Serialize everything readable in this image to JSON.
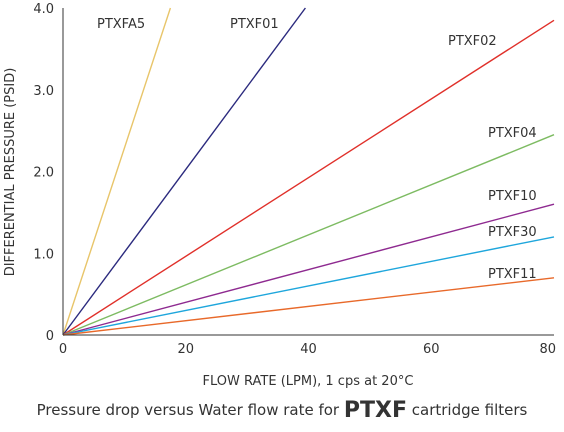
{
  "caption": {
    "prefix": "Pressure drop versus Water flow rate for ",
    "bold": "PTXF",
    "suffix": " cartridge filters"
  },
  "chart_data": {
    "type": "line",
    "xlabel": "FLOW RATE (LPM), 1 cps at 20°C",
    "ylabel": "DIFFERENTIAL PRESSURE (PSID)",
    "xlim": [
      0,
      80
    ],
    "ylim": [
      0,
      4.0
    ],
    "xticks": [
      {
        "value": 0,
        "label": "0"
      },
      {
        "value": 20,
        "label": "20"
      },
      {
        "value": 40,
        "label": "40"
      },
      {
        "value": 60,
        "label": "60"
      },
      {
        "value": 80,
        "label": "80"
      }
    ],
    "yticks": [
      {
        "value": 0,
        "label": "0"
      },
      {
        "value": 1.0,
        "label": "1.0"
      },
      {
        "value": 2.0,
        "label": "2.0"
      },
      {
        "value": 3.0,
        "label": "3.0"
      },
      {
        "value": 4.0,
        "label": "4.0"
      }
    ],
    "grid": false,
    "series": [
      {
        "name": "PTXFA5",
        "color": "#e8c56a",
        "x": [
          0,
          17.5
        ],
        "y": [
          0,
          4.0
        ]
      },
      {
        "name": "PTXF01",
        "color": "#2b2a7e",
        "x": [
          0,
          39.5
        ],
        "y": [
          0,
          4.0
        ]
      },
      {
        "name": "PTXF02",
        "color": "#e0302a",
        "x": [
          0,
          80
        ],
        "y": [
          0,
          3.85
        ]
      },
      {
        "name": "PTXF04",
        "color": "#7dbb62",
        "x": [
          0,
          80
        ],
        "y": [
          0,
          2.45
        ]
      },
      {
        "name": "PTXF10",
        "color": "#8e2a90",
        "x": [
          0,
          80
        ],
        "y": [
          0,
          1.6
        ]
      },
      {
        "name": "PTXF30",
        "color": "#1ea6dc",
        "x": [
          0,
          80
        ],
        "y": [
          0,
          1.2
        ]
      },
      {
        "name": "PTXF11",
        "color": "#e8692a",
        "x": [
          0,
          80
        ],
        "y": [
          0,
          0.7
        ]
      }
    ]
  }
}
